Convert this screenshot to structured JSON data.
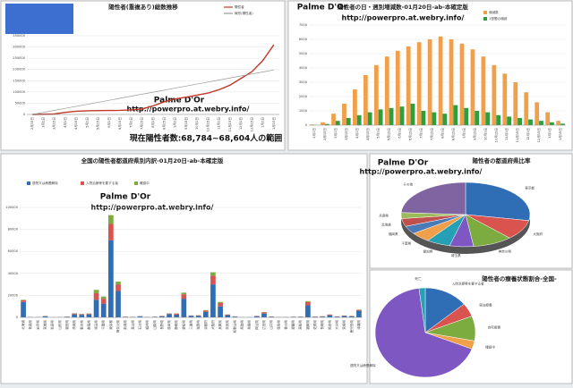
{
  "chart_data": [
    {
      "type": "line",
      "title": "陽性者(重複あり)総数推移",
      "annotations": [
        "Palme D'Or",
        "http://powerpro.at.webry.info/",
        "現在陽性者数:68,784~68,604人の範囲"
      ],
      "categories": [
        "2月15日",
        "3月1日",
        "3月15日",
        "4月1日",
        "4月15日",
        "5月1日",
        "5月15日",
        "6月1日",
        "6月15日",
        "7月1日",
        "7月15日",
        "8月1日",
        "8月15日",
        "9月1日",
        "9月15日",
        "10月1日",
        "10月15日",
        "11月1日",
        "11月15日",
        "12月1日",
        "12月15日",
        "1月1日",
        "1月15日"
      ],
      "series": [
        {
          "name": "陽性者",
          "color": "#c0392b",
          "values": [
            20,
            1000,
            2000,
            9000,
            14000,
            16000,
            17000,
            17500,
            18000,
            20000,
            24000,
            38000,
            56000,
            69000,
            77000,
            86000,
            95000,
            110000,
            130000,
            160000,
            190000,
            240000,
            310000
          ]
        },
        {
          "name": "線形(陽性者)",
          "color": "#999999",
          "values": [
            0,
            9000,
            18000,
            27000,
            36000,
            45000,
            54000,
            63000,
            72000,
            81000,
            90000,
            99000,
            108000,
            117000,
            126000,
            135000,
            144000,
            153000,
            162000,
            171000,
            180000,
            189000,
            198000
          ]
        }
      ],
      "ylim": [
        0,
        350000
      ],
      "yticks": [
        0,
        50000,
        100000,
        150000,
        200000,
        250000,
        300000,
        350000
      ],
      "grid": true
    },
    {
      "type": "bar",
      "title": "陽性者の日・週別増減数-01月20日-ab-本確定版",
      "annotations": [
        "Palme D'Or",
        "http://powerpro.at.webry.info/"
      ],
      "categories": [
        "2月1日",
        "2月15日",
        "3月1日",
        "3月15日",
        "4月1日",
        "4月15日",
        "5月1日",
        "5月15日",
        "6月1日",
        "6月15日",
        "7月1日",
        "7月15日",
        "8月1日",
        "8月15日",
        "9月1日",
        "9月15日",
        "10月1日",
        "10月15日",
        "11月1日",
        "11月15日",
        "12月1日",
        "12月15日",
        "1月1日",
        "1月15日"
      ],
      "series": [
        {
          "name": "増減数",
          "color": "#f0a04b",
          "values": [
            50,
            200,
            800,
            1500,
            2500,
            3500,
            4200,
            4800,
            5200,
            5500,
            5800,
            6000,
            6200,
            6000,
            5700,
            5300,
            4800,
            4200,
            3600,
            3000,
            2300,
            1600,
            900,
            300
          ]
        },
        {
          "name": "1週間の増減",
          "color": "#2e9e3e",
          "values": [
            10,
            80,
            300,
            500,
            700,
            900,
            1100,
            1200,
            1300,
            1500,
            1000,
            900,
            800,
            1400,
            1200,
            1000,
            900,
            700,
            600,
            500,
            400,
            300,
            200,
            100
          ]
        }
      ],
      "ylim": [
        0,
        7000
      ],
      "yticks": [
        0,
        1000,
        2000,
        3000,
        4000,
        5000,
        6000,
        7000
      ],
      "grid": true
    },
    {
      "type": "bar",
      "stacked": true,
      "title": "全国の陽性者都道府県別内訳-01月20日-ab-本確定版",
      "annotations": [
        "Palme D'Or",
        "http://powerpro.at.webry.info/"
      ],
      "categories": [
        "北海道",
        "青森県",
        "岩手県",
        "宮城県",
        "秋田県",
        "山形県",
        "福島県",
        "茨城県",
        "栃木県",
        "群馬県",
        "埼玉県",
        "千葉県",
        "東京都",
        "神奈川県",
        "新潟県",
        "富山県",
        "石川県",
        "福井県",
        "山梨県",
        "長野県",
        "岐阜県",
        "静岡県",
        "愛知県",
        "三重県",
        "滋賀県",
        "京都府",
        "大阪府",
        "兵庫県",
        "奈良県",
        "和歌山県",
        "鳥取県",
        "島根県",
        "岡山県",
        "広島県",
        "山口県",
        "徳島県",
        "香川県",
        "愛媛県",
        "高知県",
        "福岡県",
        "佐賀県",
        "長崎県",
        "熊本県",
        "大分県",
        "宮崎県",
        "鹿児島県",
        "沖縄県"
      ],
      "series": [
        {
          "name": "退院又は療養解除",
          "color": "#2f6db5",
          "values": [
            14000,
            300,
            200,
            1000,
            100,
            200,
            600,
            2700,
            2300,
            2700,
            16000,
            12500,
            70000,
            24000,
            500,
            400,
            1000,
            300,
            500,
            1000,
            3000,
            2500,
            17000,
            1400,
            1500,
            5000,
            30000,
            10000,
            2000,
            700,
            100,
            200,
            1000,
            3500,
            600,
            200,
            300,
            400,
            500,
            11000,
            600,
            700,
            1900,
            700,
            1300,
            1000,
            6000
          ]
        },
        {
          "name": "入院治療等を要する者",
          "color": "#d9534f",
          "values": [
            1500,
            50,
            50,
            200,
            20,
            50,
            100,
            800,
            600,
            600,
            6000,
            4500,
            15000,
            6000,
            100,
            50,
            100,
            50,
            100,
            300,
            500,
            800,
            4000,
            300,
            400,
            1200,
            8000,
            3000,
            500,
            200,
            20,
            30,
            300,
            1000,
            200,
            50,
            80,
            150,
            150,
            3000,
            200,
            300,
            600,
            200,
            300,
            300,
            800
          ]
        },
        {
          "name": "確認中",
          "color": "#7cab3f",
          "values": [
            500,
            10,
            10,
            100,
            5,
            10,
            50,
            300,
            200,
            300,
            3000,
            2000,
            8000,
            2500,
            30,
            20,
            40,
            20,
            40,
            100,
            200,
            300,
            1500,
            100,
            100,
            400,
            3000,
            1000,
            200,
            60,
            5,
            10,
            100,
            300,
            80,
            20,
            30,
            40,
            50,
            800,
            50,
            100,
            200,
            60,
            100,
            100,
            300
          ]
        }
      ],
      "ylim": [
        0,
        100000
      ],
      "yticks": [
        0,
        20000,
        40000,
        60000,
        80000,
        100000
      ],
      "grid": true
    },
    {
      "type": "pie",
      "title": "陽性者の都道府県比率",
      "annotations": [
        "Palme D'Or",
        "http://powerpro.at.webry.info/"
      ],
      "categories": [
        "東京都",
        "大阪府",
        "神奈川県",
        "埼玉県",
        "愛知県",
        "千葉県",
        "福岡県",
        "北海道",
        "兵庫県",
        "その他"
      ],
      "values": [
        28,
        10,
        10,
        6,
        6,
        5,
        4,
        4,
        3,
        24
      ],
      "colors": [
        "#2f6db5",
        "#d9534f",
        "#7cab3f",
        "#7e57c2",
        "#26a0b5",
        "#f0a04b",
        "#4a7ab8",
        "#c0504d",
        "#9bbb59",
        "#8064a2"
      ]
    },
    {
      "type": "pie",
      "title": "陽性者の療養状態割合-全国-",
      "categories": [
        "入院治療等を要する者",
        "宿泊療養",
        "自宅療養",
        "確認中",
        "退院又は療養解除",
        "死亡"
      ],
      "values": [
        14,
        5,
        9,
        3,
        67,
        2
      ],
      "colors": [
        "#2f6db5",
        "#d9534f",
        "#7cab3f",
        "#f0a04b",
        "#7e57c2",
        "#26a0b5"
      ]
    }
  ]
}
